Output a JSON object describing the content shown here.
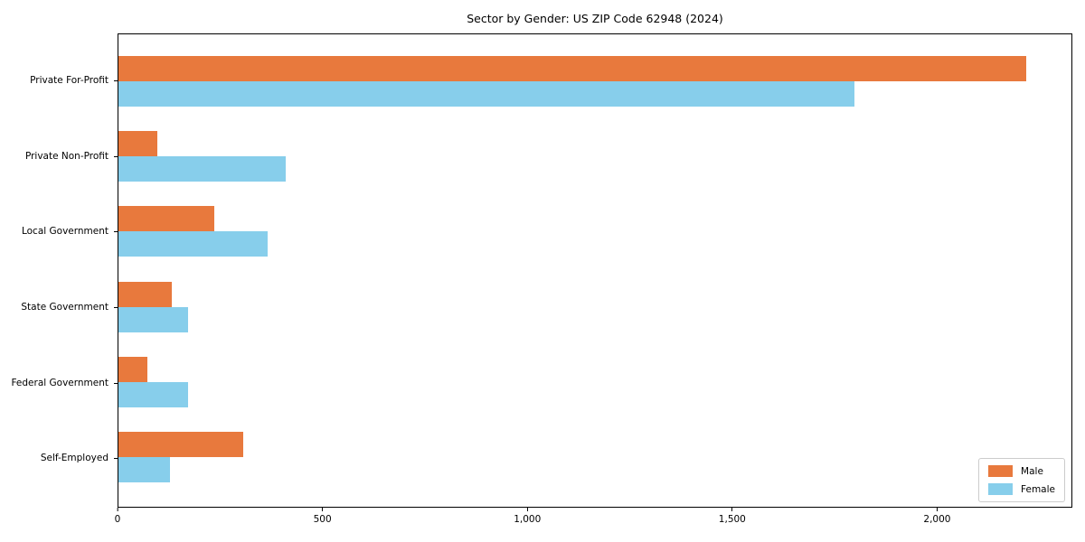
{
  "chart_data": {
    "type": "bar",
    "orientation": "horizontal",
    "title": "Sector by Gender: US ZIP Code 62948 (2024)",
    "categories": [
      "Private For-Profit",
      "Private Non-Profit",
      "Local Government",
      "State Government",
      "Federal Government",
      "Self-Employed"
    ],
    "series": [
      {
        "name": "Male",
        "color": "#E8793D",
        "values": [
          2220,
          95,
          235,
          130,
          70,
          305
        ]
      },
      {
        "name": "Female",
        "color": "#87CEEB",
        "values": [
          1800,
          410,
          365,
          170,
          170,
          125
        ]
      }
    ],
    "xlabel": "",
    "ylabel": "",
    "xlim": [
      0,
      2330
    ],
    "xticks": [
      0,
      500,
      1000,
      1500,
      2000
    ],
    "xtick_labels": [
      "0",
      "500",
      "1,000",
      "1,500",
      "2,000"
    ],
    "grid": false,
    "legend_position": "lower right",
    "colors": {
      "axis": "#000000",
      "background": "#ffffff",
      "legend_border": "#cccccc"
    }
  }
}
